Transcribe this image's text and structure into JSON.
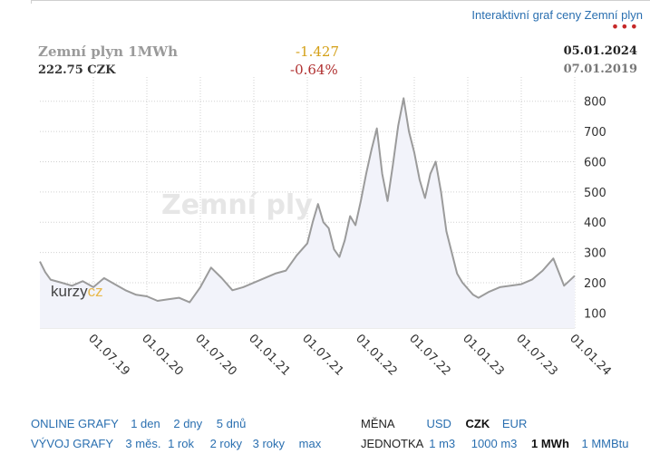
{
  "header": {
    "interactive_link": "Interaktivní graf ceny Zemní plyn",
    "dots": "•••"
  },
  "summary": {
    "title": "Zemní plyn 1MWh",
    "price": "222.75 CZK",
    "change_abs": "-1.427",
    "change_pct": "-0.64%",
    "date_end": "05.01.2024",
    "date_start": "07.01.2019"
  },
  "watermark": "Zemní ply",
  "brand": {
    "left": "kurzy",
    "right": "cz"
  },
  "colors": {
    "line": "#9b9b9b",
    "area": "#f2f3fa",
    "accent": "#2a6fb0",
    "negative": "#b03030",
    "change": "#d4a017"
  },
  "chart_data": {
    "type": "area",
    "title": "Zemní plyn 1MWh",
    "xlabel": "",
    "ylabel": "CZK",
    "x_range": [
      2019.0,
      2024.0
    ],
    "ylim": [
      50,
      850
    ],
    "yticks": [
      100,
      200,
      300,
      400,
      500,
      600,
      700,
      800
    ],
    "xticks": [
      {
        "label": "01.07.19",
        "x": 2019.5
      },
      {
        "label": "01.01.20",
        "x": 2020.0
      },
      {
        "label": "01.07.20",
        "x": 2020.5
      },
      {
        "label": "01.01.21",
        "x": 2021.0
      },
      {
        "label": "01.07.21",
        "x": 2021.5
      },
      {
        "label": "01.01.22",
        "x": 2022.0
      },
      {
        "label": "01.07.22",
        "x": 2022.5
      },
      {
        "label": "01.01.23",
        "x": 2023.0
      },
      {
        "label": "01.07.23",
        "x": 2023.5
      },
      {
        "label": "01.01.24",
        "x": 2024.0
      }
    ],
    "series": [
      {
        "name": "Zemní plyn 1MWh (CZK)",
        "x": [
          2019.0,
          2019.05,
          2019.1,
          2019.2,
          2019.3,
          2019.4,
          2019.5,
          2019.6,
          2019.7,
          2019.8,
          2019.9,
          2020.0,
          2020.1,
          2020.2,
          2020.3,
          2020.4,
          2020.5,
          2020.6,
          2020.7,
          2020.8,
          2020.9,
          2021.0,
          2021.1,
          2021.2,
          2021.3,
          2021.4,
          2021.5,
          2021.55,
          2021.6,
          2021.65,
          2021.7,
          2021.75,
          2021.8,
          2021.85,
          2021.9,
          2021.95,
          2022.0,
          2022.05,
          2022.1,
          2022.15,
          2022.2,
          2022.25,
          2022.3,
          2022.35,
          2022.4,
          2022.45,
          2022.5,
          2022.55,
          2022.6,
          2022.65,
          2022.7,
          2022.75,
          2022.8,
          2022.85,
          2022.9,
          2022.95,
          2023.0,
          2023.05,
          2023.1,
          2023.2,
          2023.3,
          2023.4,
          2023.5,
          2023.6,
          2023.7,
          2023.8,
          2023.9,
          2024.0
        ],
        "values": [
          270,
          235,
          210,
          200,
          190,
          205,
          185,
          215,
          195,
          175,
          160,
          155,
          140,
          145,
          150,
          135,
          185,
          250,
          215,
          175,
          185,
          200,
          215,
          230,
          240,
          290,
          330,
          400,
          460,
          400,
          380,
          310,
          285,
          340,
          420,
          390,
          470,
          560,
          640,
          710,
          560,
          470,
          590,
          720,
          810,
          700,
          630,
          540,
          480,
          560,
          600,
          500,
          370,
          300,
          230,
          200,
          180,
          160,
          150,
          170,
          185,
          190,
          195,
          210,
          240,
          280,
          190,
          223
        ]
      }
    ]
  },
  "footer": {
    "online_label": "ONLINE GRAFY",
    "online_items": [
      "1 den",
      "2 dny",
      "5 dnů"
    ],
    "history_label": "VÝVOJ GRAFY",
    "history_items": [
      "3 měs.",
      "1 rok",
      "2 roky",
      "3 roky",
      "max"
    ],
    "currency_label": "MĚNA",
    "currency_items": [
      "USD",
      "CZK",
      "EUR"
    ],
    "currency_selected": "CZK",
    "unit_label": "JEDNOTKA",
    "unit_items": [
      "1 m3",
      "1000 m3",
      "1 MWh",
      "1 MMBtu"
    ],
    "unit_selected": "1 MWh"
  }
}
